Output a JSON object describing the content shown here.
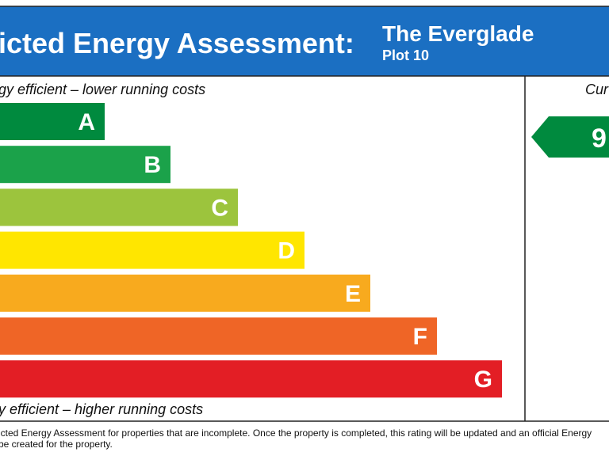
{
  "header": {
    "title": "icted Energy Assessment:",
    "property": "The Everglade",
    "plot": "Plot 10"
  },
  "scale": {
    "top_note": "gy efficient – lower running costs",
    "bottom_note": "y efficient – higher running costs",
    "bands": [
      {
        "label": "A",
        "color": "#008a3e"
      },
      {
        "label": "B",
        "color": "#1ba24a"
      },
      {
        "label": "C",
        "color": "#9cc43d"
      },
      {
        "label": "D",
        "color": "#ffe600"
      },
      {
        "label": "E",
        "color": "#f8aa1e"
      },
      {
        "label": "F",
        "color": "#ef6526"
      },
      {
        "label": "G",
        "color": "#e31e25"
      }
    ]
  },
  "current": {
    "heading": "Cur",
    "rating": "9"
  },
  "footer": {
    "lines": [
      "icted Energy Assessment for properties that are incomplete. Once the property is completed, this rating will be updated and an official Energy",
      "be created for the property."
    ]
  }
}
